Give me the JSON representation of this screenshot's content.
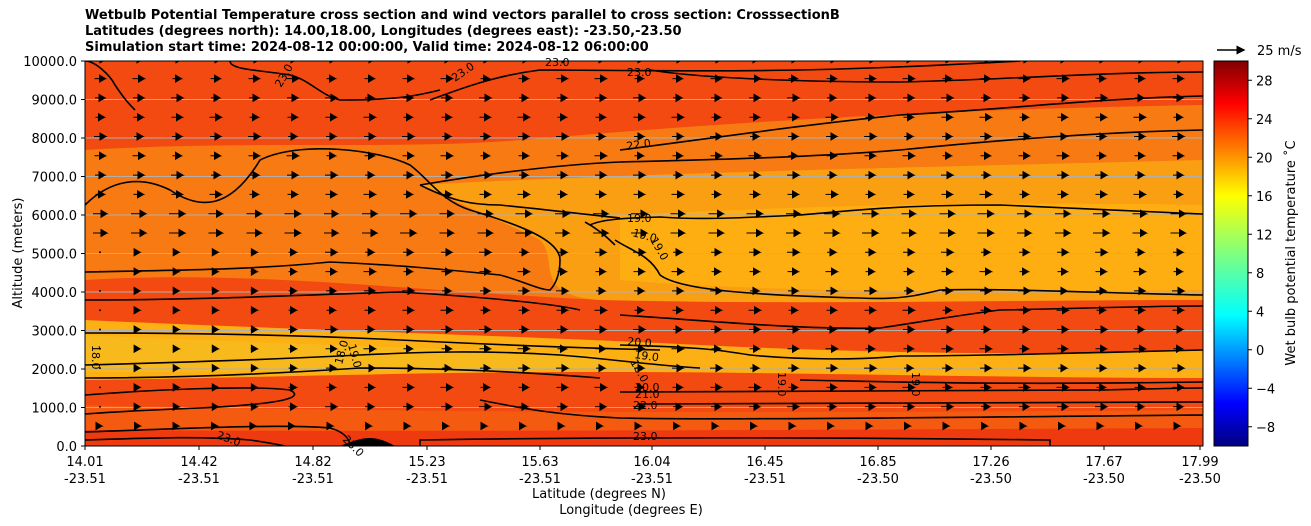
{
  "title": {
    "line1": "Wetbulb Potential Temperature cross section and wind vectors parallel to cross section: CrosssectionB",
    "line2": "Latitudes (degrees north): 14.00,18.00, Longitudes (degrees east): -23.50,-23.50",
    "line3": "Simulation start time: 2024-08-12 00:00:00, Valid time: 2024-08-12 06:00:00"
  },
  "chart_data": {
    "type": "heatmap",
    "ylabel": "Altitude (meters)",
    "xlabel_lat": "Latitude (degrees N)",
    "xlabel_lon": "Longitude (degrees E)",
    "ylim": [
      0,
      10000
    ],
    "yticks": [
      "0.0",
      "1000.0",
      "2000.0",
      "3000.0",
      "4000.0",
      "5000.0",
      "6000.0",
      "7000.0",
      "8000.0",
      "9000.0",
      "10000.0"
    ],
    "xticks": [
      {
        "lat": "14.01",
        "lon": "-23.51"
      },
      {
        "lat": "14.42",
        "lon": "-23.51"
      },
      {
        "lat": "14.82",
        "lon": "-23.51"
      },
      {
        "lat": "15.23",
        "lon": "-23.51"
      },
      {
        "lat": "15.63",
        "lon": "-23.51"
      },
      {
        "lat": "16.04",
        "lon": "-23.51"
      },
      {
        "lat": "16.45",
        "lon": "-23.51"
      },
      {
        "lat": "16.85",
        "lon": "-23.50"
      },
      {
        "lat": "17.26",
        "lon": "-23.50"
      },
      {
        "lat": "17.67",
        "lon": "-23.50"
      },
      {
        "lat": "17.99",
        "lon": "-23.50"
      }
    ],
    "grid": "horizontal",
    "colorbar": {
      "label": "Wet bulb potential temperature ˚C",
      "ticks": [
        "−8",
        "−4",
        "0",
        "4",
        "8",
        "12",
        "16",
        "20",
        "24",
        "28"
      ],
      "range": [
        -10,
        30
      ],
      "colormap": "jet"
    },
    "quiver_key": {
      "label": "25 m/s"
    },
    "contour_labels": [
      "23.0",
      "23.0",
      "23.0",
      "23.0",
      "22.0",
      "19.0",
      "19.0",
      "19.0",
      "18.0",
      "18.0",
      "19.0",
      "20.0",
      "19.0",
      "18.0",
      "20.0",
      "21.0",
      "22.0",
      "19.0",
      "19.0",
      "23.0",
      "23.0",
      "23.0"
    ],
    "temperature_layers_note": ""
  }
}
